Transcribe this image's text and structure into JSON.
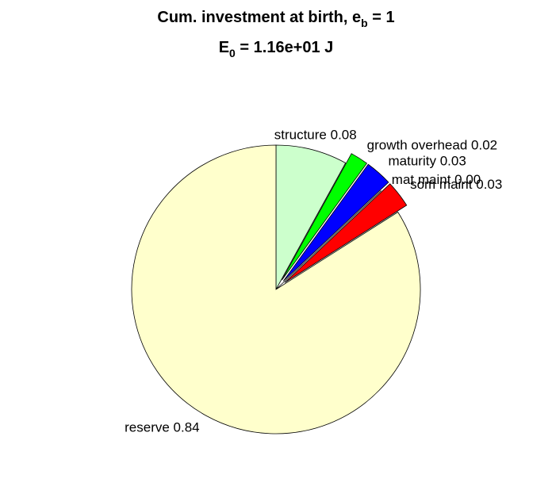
{
  "chart_data": {
    "type": "pie",
    "title": [
      "Cum. investment at birth, e",
      "b",
      " = 1"
    ],
    "subtitle": [
      "E",
      "0",
      " = 1.16e+01 J"
    ],
    "categories": [
      "structure",
      "growth overhead",
      "maturity",
      "mat maint",
      "som maint",
      "reserve"
    ],
    "values": [
      0.08,
      0.02,
      0.03,
      0,
      0.03,
      0.84
    ],
    "value_labels": [
      "0.08",
      "0.02",
      "0.03",
      "0.00",
      "0.03",
      "0.84"
    ],
    "colors": [
      "#ccffcc",
      "#00ff00",
      "#0000ff",
      "#ffffff",
      "#ff0000",
      "#ffffcc"
    ],
    "explode": [
      false,
      true,
      true,
      false,
      true,
      false
    ]
  }
}
